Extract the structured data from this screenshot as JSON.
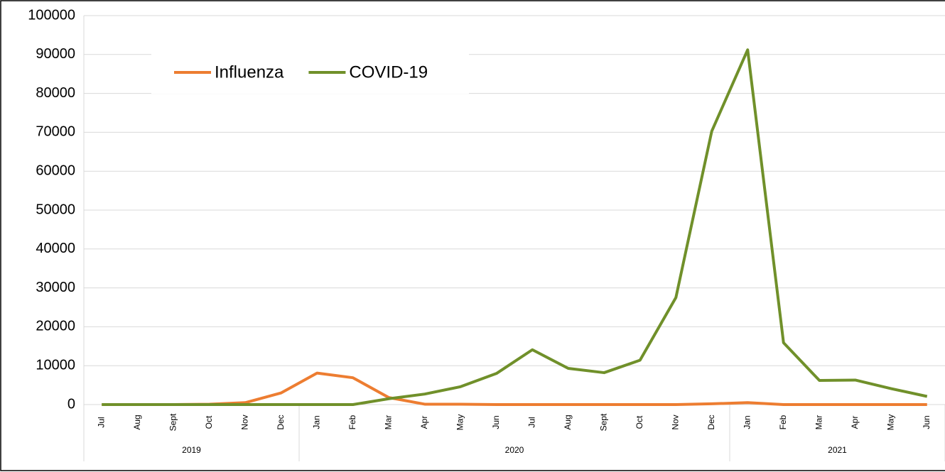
{
  "chart_data": {
    "type": "line",
    "categories": [
      "Jul",
      "Aug",
      "Sept",
      "Oct",
      "Nov",
      "Dec",
      "Jan",
      "Feb",
      "Mar",
      "Apr",
      "May",
      "Jun",
      "Jul",
      "Aug",
      "Sept",
      "Oct",
      "Nov",
      "Dec",
      "Jan",
      "Feb",
      "Mar",
      "Apr",
      "May",
      "Jun"
    ],
    "groups": [
      {
        "label": "2019",
        "span": 6
      },
      {
        "label": "2020",
        "span": 12
      },
      {
        "label": "2021",
        "span": 6
      }
    ],
    "series": [
      {
        "name": "Influenza",
        "color": "#ed7d31",
        "values": [
          0,
          0,
          0,
          100,
          500,
          3000,
          8100,
          6900,
          1800,
          100,
          100,
          0,
          0,
          0,
          0,
          0,
          0,
          200,
          500,
          0,
          0,
          0,
          0,
          0
        ]
      },
      {
        "name": "COVID-19",
        "color": "#70902a",
        "values": [
          0,
          0,
          0,
          0,
          0,
          0,
          0,
          0,
          1500,
          2700,
          4600,
          8000,
          14100,
          9300,
          8200,
          11400,
          27500,
          70300,
          91200,
          15900,
          6200,
          6300,
          4100,
          2100
        ]
      }
    ],
    "ylim": [
      0,
      100000
    ],
    "yticks": [
      0,
      10000,
      20000,
      30000,
      40000,
      50000,
      60000,
      70000,
      80000,
      90000,
      100000
    ],
    "grid": true,
    "legend": "top-left"
  }
}
